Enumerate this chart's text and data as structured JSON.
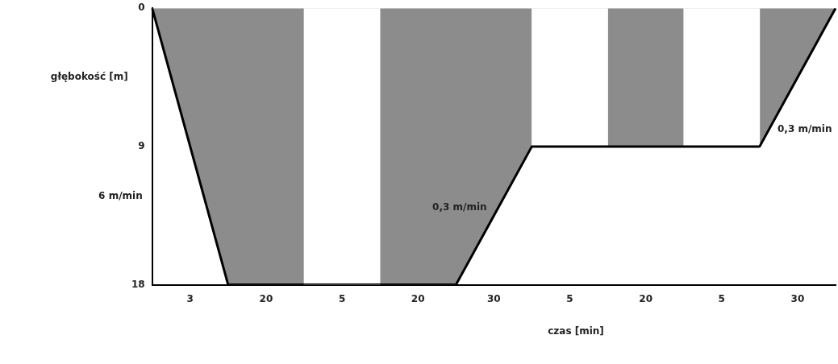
{
  "chart_data": {
    "type": "area",
    "xlabel": "czas [min]",
    "ylabel": "głębokość [m]",
    "categories": [
      null,
      "3",
      null,
      "20",
      null,
      "5",
      null,
      "20",
      null,
      "30",
      null,
      "5",
      null,
      "20",
      null,
      "5",
      null,
      "30",
      null
    ],
    "series": [
      {
        "color": "#8c8c8c",
        "values": [
          0,
          9,
          18,
          18,
          18,
          18,
          18,
          18,
          18,
          13.5,
          9,
          9,
          9,
          9,
          9,
          9,
          9,
          4.5,
          0
        ]
      },
      {
        "type": "bar",
        "color": "#ffffff",
        "values": [
          null,
          null,
          null,
          null,
          null,
          18,
          null,
          null,
          null,
          null,
          null,
          9,
          null,
          null,
          null,
          9,
          null,
          null,
          null
        ]
      }
    ],
    "ylim": [
      18,
      0
    ],
    "yticks": [
      0,
      9,
      18
    ],
    "annotations": [
      "6 m/min",
      "0,3 m/min",
      "0,3 m/min"
    ],
    "grid": false,
    "legend": false
  }
}
